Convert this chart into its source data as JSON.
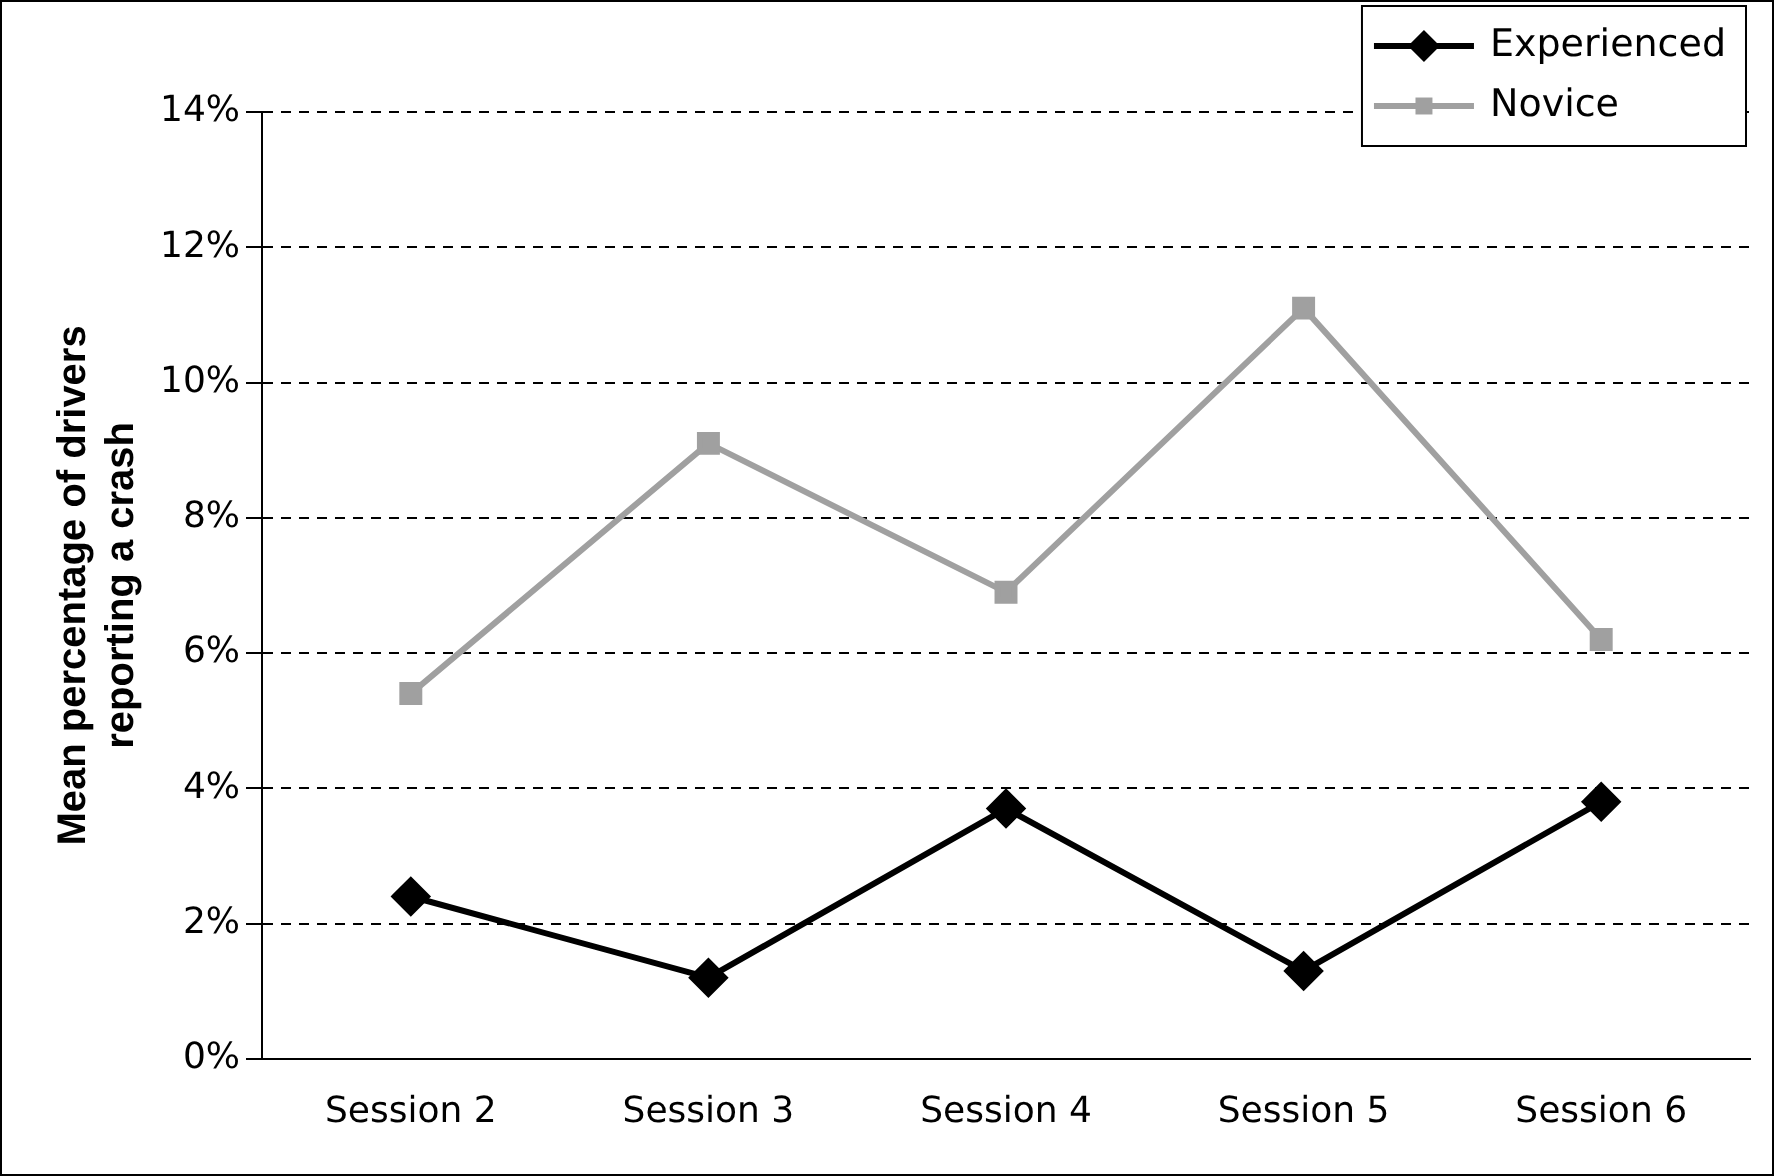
{
  "chart_data": {
    "type": "line",
    "ylabel": "Mean percentage of drivers reporting a crash",
    "categories": [
      "Session 2",
      "Session 3",
      "Session 4",
      "Session 5",
      "Session 6"
    ],
    "series": [
      {
        "name": "Experienced",
        "color": "#000000",
        "marker": "diamond",
        "values": [
          2.4,
          1.2,
          3.7,
          1.3,
          3.8
        ]
      },
      {
        "name": "Novice",
        "color": "#a0a0a0",
        "marker": "square",
        "values": [
          5.4,
          9.1,
          6.9,
          11.1,
          6.2
        ]
      }
    ],
    "ylim": [
      0,
      14
    ],
    "yticks": [
      {
        "value": 0,
        "label": "0%"
      },
      {
        "value": 2,
        "label": "2%"
      },
      {
        "value": 4,
        "label": "4%"
      },
      {
        "value": 6,
        "label": "6%"
      },
      {
        "value": 8,
        "label": "8%"
      },
      {
        "value": 10,
        "label": "10%"
      },
      {
        "value": 12,
        "label": "12%"
      },
      {
        "value": 14,
        "label": "14%"
      }
    ],
    "grid": "y",
    "legend": "top right",
    "line_style": "solid"
  }
}
